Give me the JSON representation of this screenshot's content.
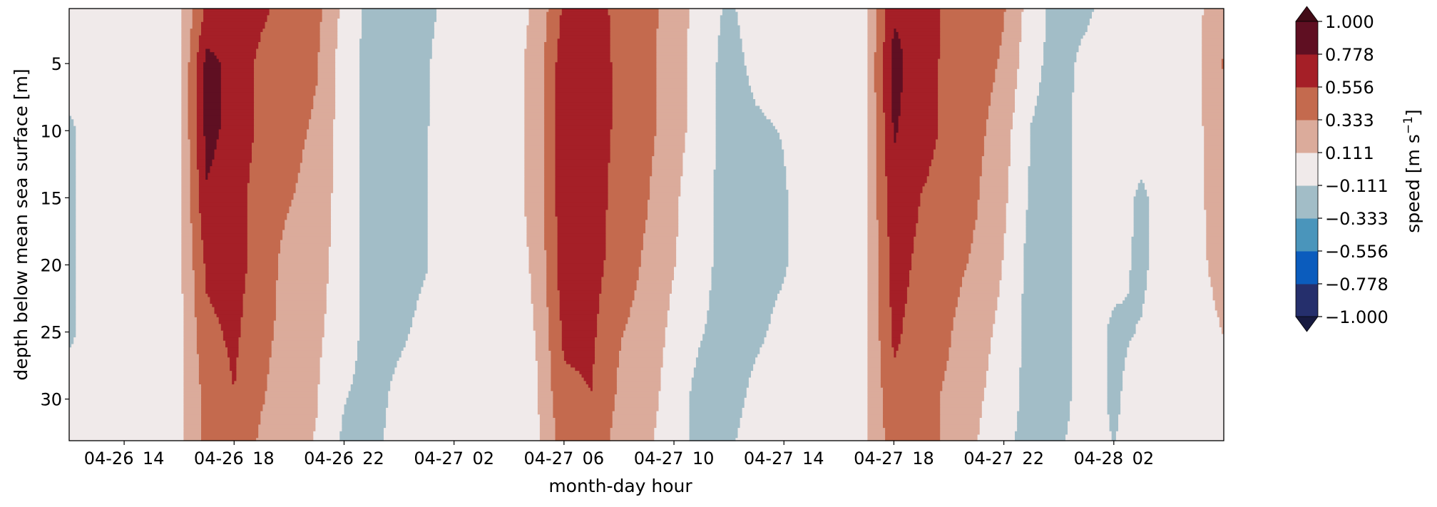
{
  "chart_data": {
    "type": "contourf",
    "xlabel": "month-day hour",
    "ylabel": "depth below mean sea surface [m]",
    "colorbar_label": "speed [m s",
    "colorbar_label_exp": "−1",
    "colorbar_label_close": "]",
    "xlim": [
      "04-26 12",
      "04-28 06"
    ],
    "ylim": [
      33.1,
      0.9
    ],
    "y_inverted": true,
    "grid": false,
    "x_ticks": [
      "04-26 14",
      "04-26 18",
      "04-26 22",
      "04-27 02",
      "04-27 06",
      "04-27 10",
      "04-27 14",
      "04-27 18",
      "04-27 22",
      "04-28 02"
    ],
    "y_ticks": [
      5,
      10,
      15,
      20,
      25,
      30
    ],
    "levels": [
      -1.0,
      -0.778,
      -0.556,
      -0.333,
      -0.111,
      0.111,
      0.333,
      0.556,
      0.778,
      1.0
    ],
    "level_labels": [
      "−1.000",
      "−0.778",
      "−0.556",
      "−0.333",
      "−0.111",
      "0.111",
      "0.333",
      "0.556",
      "0.778",
      "1.000"
    ],
    "colors": [
      "#252f6c",
      "#0b5cbd",
      "#4a95bb",
      "#a2bdc7",
      "#f0eaea",
      "#dbab9b",
      "#c46a4e",
      "#a51f27",
      "#5f0f22"
    ],
    "extend_low_color": "#171a40",
    "extend_high_color": "#420b16",
    "depths": [
      1,
      5,
      10,
      15,
      20,
      25,
      30,
      33
    ],
    "times": [
      "04-26 12",
      "04-26 13",
      "04-26 14",
      "04-26 15",
      "04-26 16",
      "04-26 17",
      "04-26 18",
      "04-26 19",
      "04-26 20",
      "04-26 21",
      "04-26 22",
      "04-26 23",
      "04-27 00",
      "04-27 01",
      "04-27 02",
      "04-27 03",
      "04-27 04",
      "04-27 05",
      "04-27 06",
      "04-27 07",
      "04-27 08",
      "04-27 09",
      "04-27 10",
      "04-27 11",
      "04-27 12",
      "04-27 13",
      "04-27 14",
      "04-27 15",
      "04-27 16",
      "04-27 17",
      "04-27 18",
      "04-27 19",
      "04-27 20",
      "04-27 21",
      "04-27 22",
      "04-27 23",
      "04-28 00",
      "04-28 01",
      "04-28 02",
      "04-28 03",
      "04-28 04",
      "04-28 05",
      "04-28 06"
    ],
    "speed": [
      [
        0,
        0,
        -0.15,
        -0.15,
        -0.15,
        -0.15,
        0,
        0
      ],
      [
        0,
        0,
        0,
        0,
        0,
        0,
        0,
        0
      ],
      [
        0,
        0,
        0,
        0,
        0,
        0,
        0,
        0
      ],
      [
        0,
        0,
        0,
        0,
        0,
        0,
        0,
        0
      ],
      [
        0.05,
        0.05,
        0.05,
        0.05,
        0.05,
        0.05,
        0.05,
        0.05
      ],
      [
        0.6,
        0.85,
        0.85,
        0.75,
        0.6,
        0.5,
        0.4,
        0.4
      ],
      [
        0.75,
        0.7,
        0.7,
        0.65,
        0.65,
        0.6,
        0.55,
        0.5
      ],
      [
        0.6,
        0.5,
        0.5,
        0.45,
        0.45,
        0.4,
        0.35,
        0.3
      ],
      [
        0.45,
        0.45,
        0.4,
        0.35,
        0.25,
        0.25,
        0.2,
        0.2
      ],
      [
        0.4,
        0.35,
        0.3,
        0.25,
        0.2,
        0.15,
        0.12,
        0.1
      ],
      [
        0.05,
        0,
        0,
        0,
        0,
        0,
        -0.1,
        -0.15
      ],
      [
        -0.2,
        -0.2,
        -0.2,
        -0.2,
        -0.2,
        -0.2,
        -0.2,
        -0.2
      ],
      [
        -0.2,
        -0.2,
        -0.2,
        -0.2,
        -0.2,
        -0.15,
        -0.05,
        0
      ],
      [
        -0.15,
        -0.13,
        -0.12,
        -0.12,
        -0.12,
        -0.05,
        0,
        0
      ],
      [
        -0.05,
        0,
        0,
        0,
        0,
        0,
        0,
        0
      ],
      [
        0,
        0,
        0,
        0,
        0,
        0,
        0,
        0
      ],
      [
        0,
        0,
        0,
        0,
        0,
        0,
        0,
        0
      ],
      [
        0.15,
        0.2,
        0.2,
        0.2,
        0.15,
        0.12,
        0.1,
        0.05
      ],
      [
        0.6,
        0.7,
        0.7,
        0.7,
        0.7,
        0.6,
        0.5,
        0.45
      ],
      [
        0.65,
        0.7,
        0.7,
        0.7,
        0.65,
        0.6,
        0.55,
        0.5
      ],
      [
        0.5,
        0.5,
        0.5,
        0.45,
        0.45,
        0.35,
        0.3,
        0.25
      ],
      [
        0.4,
        0.4,
        0.4,
        0.35,
        0.3,
        0.25,
        0.2,
        0.15
      ],
      [
        0.25,
        0.2,
        0.2,
        0.15,
        0.12,
        0.05,
        0,
        0
      ],
      [
        0,
        0,
        0,
        -0.05,
        -0.05,
        -0.1,
        -0.2,
        -0.2
      ],
      [
        -0.15,
        -0.2,
        -0.2,
        -0.2,
        -0.2,
        -0.2,
        -0.2,
        -0.15
      ],
      [
        0,
        -0.05,
        -0.15,
        -0.2,
        -0.2,
        -0.15,
        -0.05,
        0
      ],
      [
        0,
        0,
        -0.1,
        -0.13,
        -0.13,
        -0.05,
        0,
        0
      ],
      [
        0,
        0,
        0,
        0,
        0,
        0,
        0,
        0
      ],
      [
        0,
        0,
        0,
        0,
        0,
        0,
        0,
        0
      ],
      [
        0.1,
        0.1,
        0.1,
        0.1,
        0.1,
        0.1,
        0.1,
        0.1
      ],
      [
        0.75,
        0.85,
        0.8,
        0.7,
        0.65,
        0.6,
        0.5,
        0.45
      ],
      [
        0.7,
        0.65,
        0.65,
        0.55,
        0.5,
        0.45,
        0.4,
        0.4
      ],
      [
        0.5,
        0.5,
        0.5,
        0.45,
        0.4,
        0.35,
        0.3,
        0.3
      ],
      [
        0.45,
        0.45,
        0.4,
        0.35,
        0.3,
        0.2,
        0.15,
        0.12
      ],
      [
        0.35,
        0.3,
        0.2,
        0.15,
        0.1,
        0.05,
        0,
        -0.05
      ],
      [
        0,
        -0.05,
        -0.12,
        -0.15,
        -0.2,
        -0.2,
        -0.2,
        -0.2
      ],
      [
        -0.2,
        -0.2,
        -0.2,
        -0.2,
        -0.2,
        -0.2,
        -0.2,
        -0.15
      ],
      [
        -0.15,
        -0.05,
        0,
        0,
        0,
        0,
        0,
        0
      ],
      [
        0,
        0,
        0,
        0,
        -0.05,
        -0.15,
        -0.15,
        -0.12
      ],
      [
        0,
        0,
        0,
        -0.15,
        -0.15,
        -0.1,
        0,
        0
      ],
      [
        0,
        0,
        0,
        0,
        0,
        0,
        0,
        0
      ],
      [
        0.05,
        0.05,
        0.05,
        0.05,
        0.05,
        0,
        0,
        0
      ],
      [
        0.3,
        0.35,
        0.3,
        0.25,
        0.2,
        0.12,
        0,
        0
      ]
    ]
  }
}
